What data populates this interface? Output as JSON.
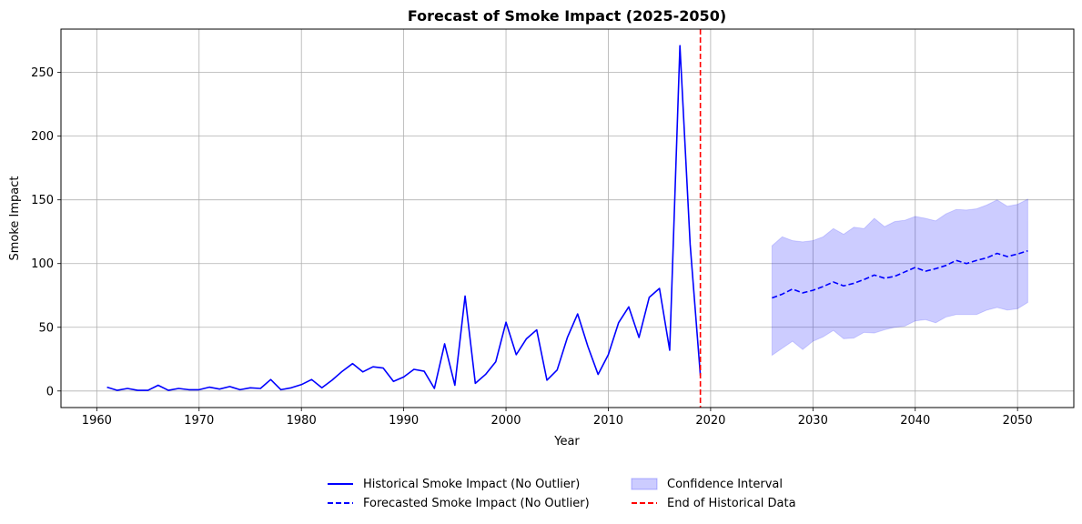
{
  "chart_data": {
    "type": "line",
    "title": "Forecast of Smoke Impact (2025-2050)",
    "xlabel": "Year",
    "ylabel": "Smoke Impact",
    "xlim": [
      1956.5,
      2055.5
    ],
    "ylim": [
      -13,
      284
    ],
    "xticks": [
      1960,
      1970,
      1980,
      1990,
      2000,
      2010,
      2020,
      2030,
      2040,
      2050
    ],
    "yticks": [
      0,
      50,
      100,
      150,
      200,
      250
    ],
    "grid": true,
    "legend_position": "bottom-center",
    "vline": {
      "x": 2019,
      "name": "End of Historical Data",
      "color": "#ff0000",
      "style": "dashed"
    },
    "series": [
      {
        "name": "Historical Smoke Impact (No Outlier)",
        "color": "#0000ff",
        "style": "solid",
        "x": [
          1961,
          1962,
          1963,
          1964,
          1965,
          1966,
          1967,
          1968,
          1969,
          1970,
          1971,
          1972,
          1973,
          1974,
          1975,
          1976,
          1977,
          1978,
          1979,
          1980,
          1981,
          1982,
          1983,
          1984,
          1985,
          1986,
          1987,
          1988,
          1989,
          1990,
          1991,
          1992,
          1993,
          1994,
          1995,
          1996,
          1997,
          1998,
          1999,
          2000,
          2001,
          2002,
          2003,
          2004,
          2005,
          2006,
          2007,
          2008,
          2009,
          2010,
          2011,
          2012,
          2013,
          2014,
          2015,
          2016,
          2017,
          2018,
          2019
        ],
        "y": [
          3,
          0.5,
          2,
          0.5,
          0.5,
          4.5,
          0.5,
          2,
          1,
          1,
          3,
          1.5,
          3.5,
          1,
          2.5,
          2,
          9,
          1,
          2.5,
          5,
          9,
          2.5,
          8.5,
          15.5,
          21.5,
          15,
          19,
          18,
          7.5,
          11,
          17,
          15.5,
          2,
          37,
          4.5,
          74.5,
          6,
          13,
          23,
          54,
          28.5,
          41,
          48,
          8.5,
          16.5,
          42,
          60.5,
          35,
          13,
          28.5,
          53.5,
          66,
          42,
          73.5,
          80.5,
          32,
          271,
          115,
          12
        ]
      },
      {
        "name": "Forecasted Smoke Impact (No Outlier)",
        "color": "#0000ff",
        "style": "dashed",
        "x": [
          2026,
          2027,
          2028,
          2029,
          2030,
          2031,
          2032,
          2033,
          2034,
          2035,
          2036,
          2037,
          2038,
          2039,
          2040,
          2041,
          2042,
          2043,
          2044,
          2045,
          2046,
          2047,
          2048,
          2049,
          2050,
          2051
        ],
        "y": [
          73,
          76,
          80,
          77,
          79,
          82,
          85.5,
          82.5,
          84.5,
          87.5,
          91,
          88.5,
          90,
          93.5,
          97,
          94,
          96,
          98.5,
          102.5,
          100,
          102.5,
          104.5,
          108,
          105.5,
          107.5,
          110
        ]
      }
    ],
    "band": {
      "name": "Confidence Interval",
      "color": "#0000ff",
      "opacity": 0.2,
      "x": [
        2026,
        2027,
        2028,
        2029,
        2030,
        2031,
        2032,
        2033,
        2034,
        2035,
        2036,
        2037,
        2038,
        2039,
        2040,
        2041,
        2042,
        2043,
        2044,
        2045,
        2046,
        2047,
        2048,
        2049,
        2050,
        2051
      ],
      "upper": [
        114,
        121,
        118,
        117,
        118,
        121,
        127.5,
        123,
        128.5,
        127.5,
        135.5,
        129,
        133,
        134,
        137,
        135.5,
        133.5,
        139,
        142.5,
        142,
        143,
        146,
        150,
        145,
        146.5,
        150.5
      ],
      "lower": [
        28,
        33.5,
        39,
        32.5,
        39,
        42.5,
        47.5,
        41,
        41.5,
        46,
        45.5,
        48,
        50,
        51,
        55,
        56,
        53.5,
        58,
        60,
        60,
        60,
        63.5,
        65.5,
        63.5,
        64.5,
        69.5
      ]
    }
  }
}
